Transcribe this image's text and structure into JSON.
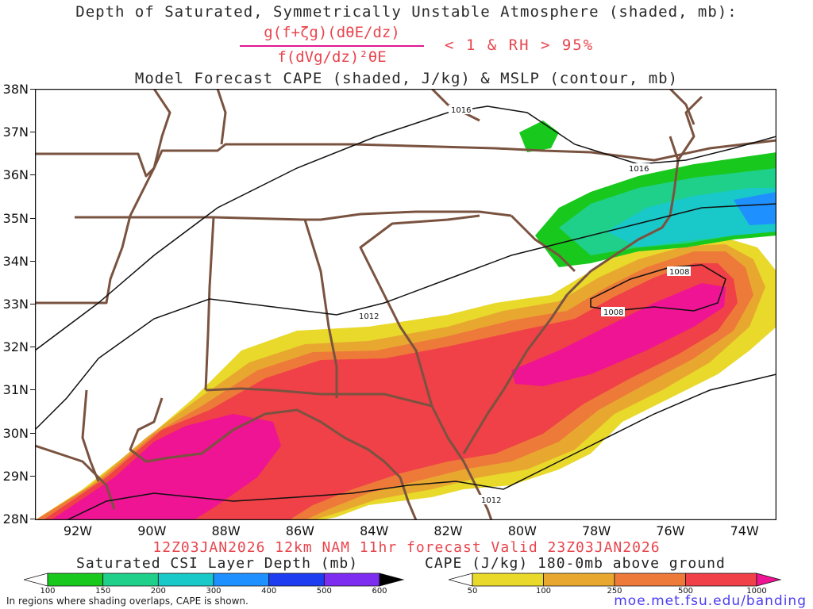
{
  "title": {
    "line1": "Depth of Saturated, Symmetrically Unstable Atmosphere (shaded, mb):",
    "numerator": "g(f+ζg)(dθE/dz)",
    "denominator": "f(dVg/dz)²θE",
    "condition": "< 1 & RH > 95%",
    "line3": "Model Forecast CAPE (shaded, J/kg) & MSLP (contour, mb)"
  },
  "forecast_line": "12Z03JAN2026 12km NAM 11hr forecast Valid 23Z03JAN2026",
  "legends": {
    "csi": {
      "label": "Saturated CSI Layer Depth (mb)",
      "ticks": [
        "100",
        "150",
        "200",
        "300",
        "400",
        "500",
        "600"
      ],
      "colors": [
        "#ffffff",
        "#19c81d",
        "#1ed08a",
        "#19c8c8",
        "#1e90ff",
        "#1e3cf0",
        "#7d2df0",
        "#000000"
      ]
    },
    "cape": {
      "label": "CAPE (J/kg) 180-0mb above ground",
      "ticks": [
        "50",
        "100",
        "250",
        "500",
        "1000"
      ],
      "colors": [
        "#ffffff",
        "#e8d92a",
        "#e8a830",
        "#ee7a3a",
        "#f04048",
        "#ee1493"
      ]
    }
  },
  "note": "In regions where shading overlaps, CAPE is shown.",
  "url": "moe.met.fsu.edu/banding",
  "map": {
    "lat_labels": [
      "38N",
      "37N",
      "36N",
      "35N",
      "34N",
      "33N",
      "32N",
      "31N",
      "30N",
      "29N",
      "28N"
    ],
    "lon_labels": [
      "92W",
      "90W",
      "88W",
      "86W",
      "84W",
      "82W",
      "80W",
      "78W",
      "76W",
      "74W"
    ],
    "isobar_labels": [
      "1016",
      "1016",
      "1012",
      "1008",
      "1008",
      "1012"
    ],
    "colors": {
      "border": "#7a5340",
      "isobar": "#111111"
    }
  }
}
